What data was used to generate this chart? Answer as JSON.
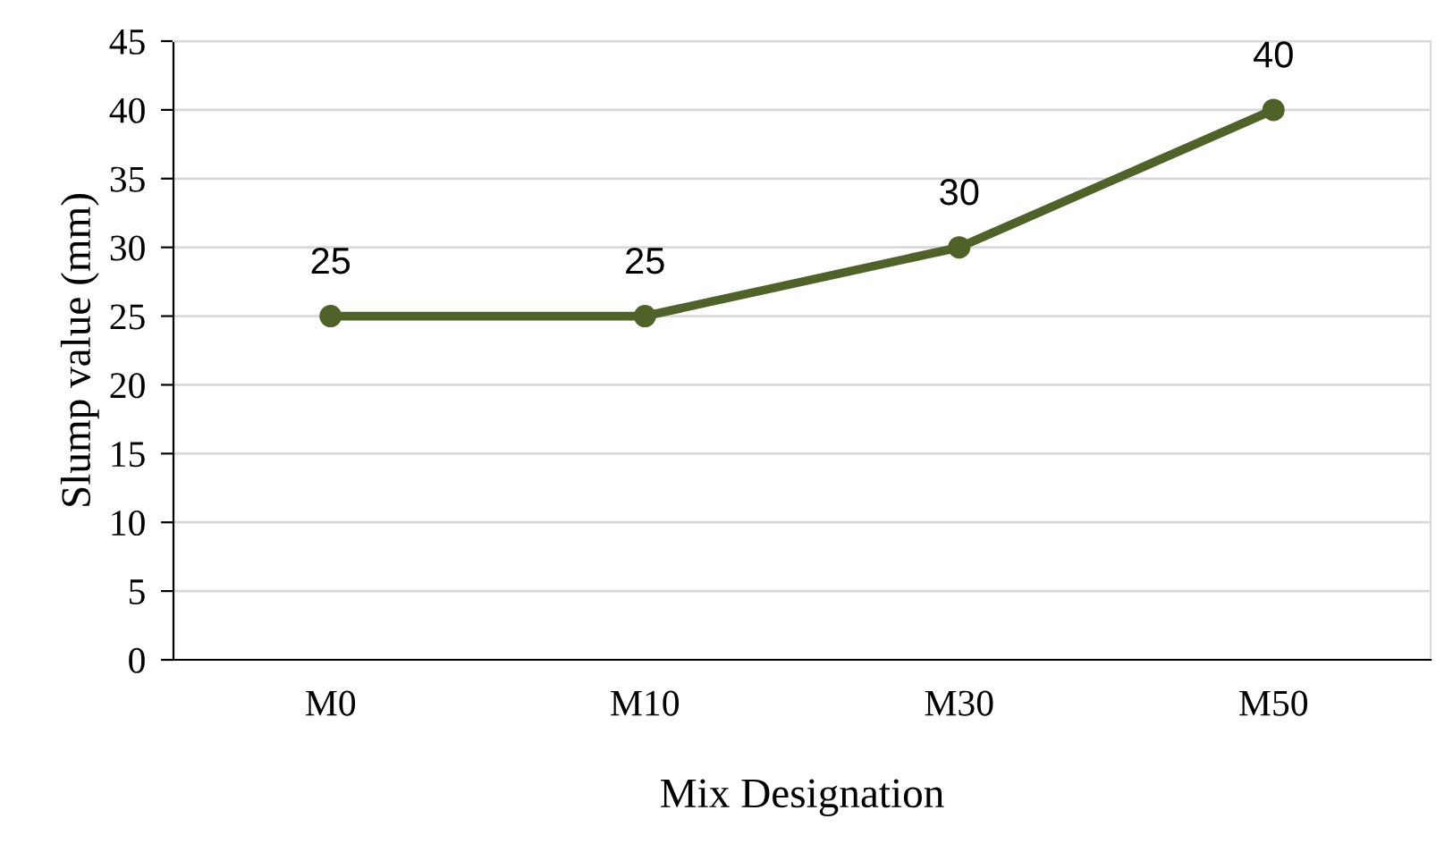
{
  "chart_data": {
    "type": "line",
    "xlabel": "Mix Designation",
    "ylabel": "Slump value (mm)",
    "categories": [
      "M0",
      "M10",
      "M30",
      "M50"
    ],
    "series": [
      {
        "color": "#4f6228",
        "values": [
          25,
          25,
          30,
          40
        ]
      }
    ],
    "ylim": [
      0,
      45
    ],
    "yticks": [
      0,
      5,
      10,
      15,
      20,
      25,
      30,
      35,
      40,
      45
    ],
    "grid": "y",
    "marker": "circle",
    "line_style": "solid",
    "data_labels": true,
    "legend": false
  }
}
